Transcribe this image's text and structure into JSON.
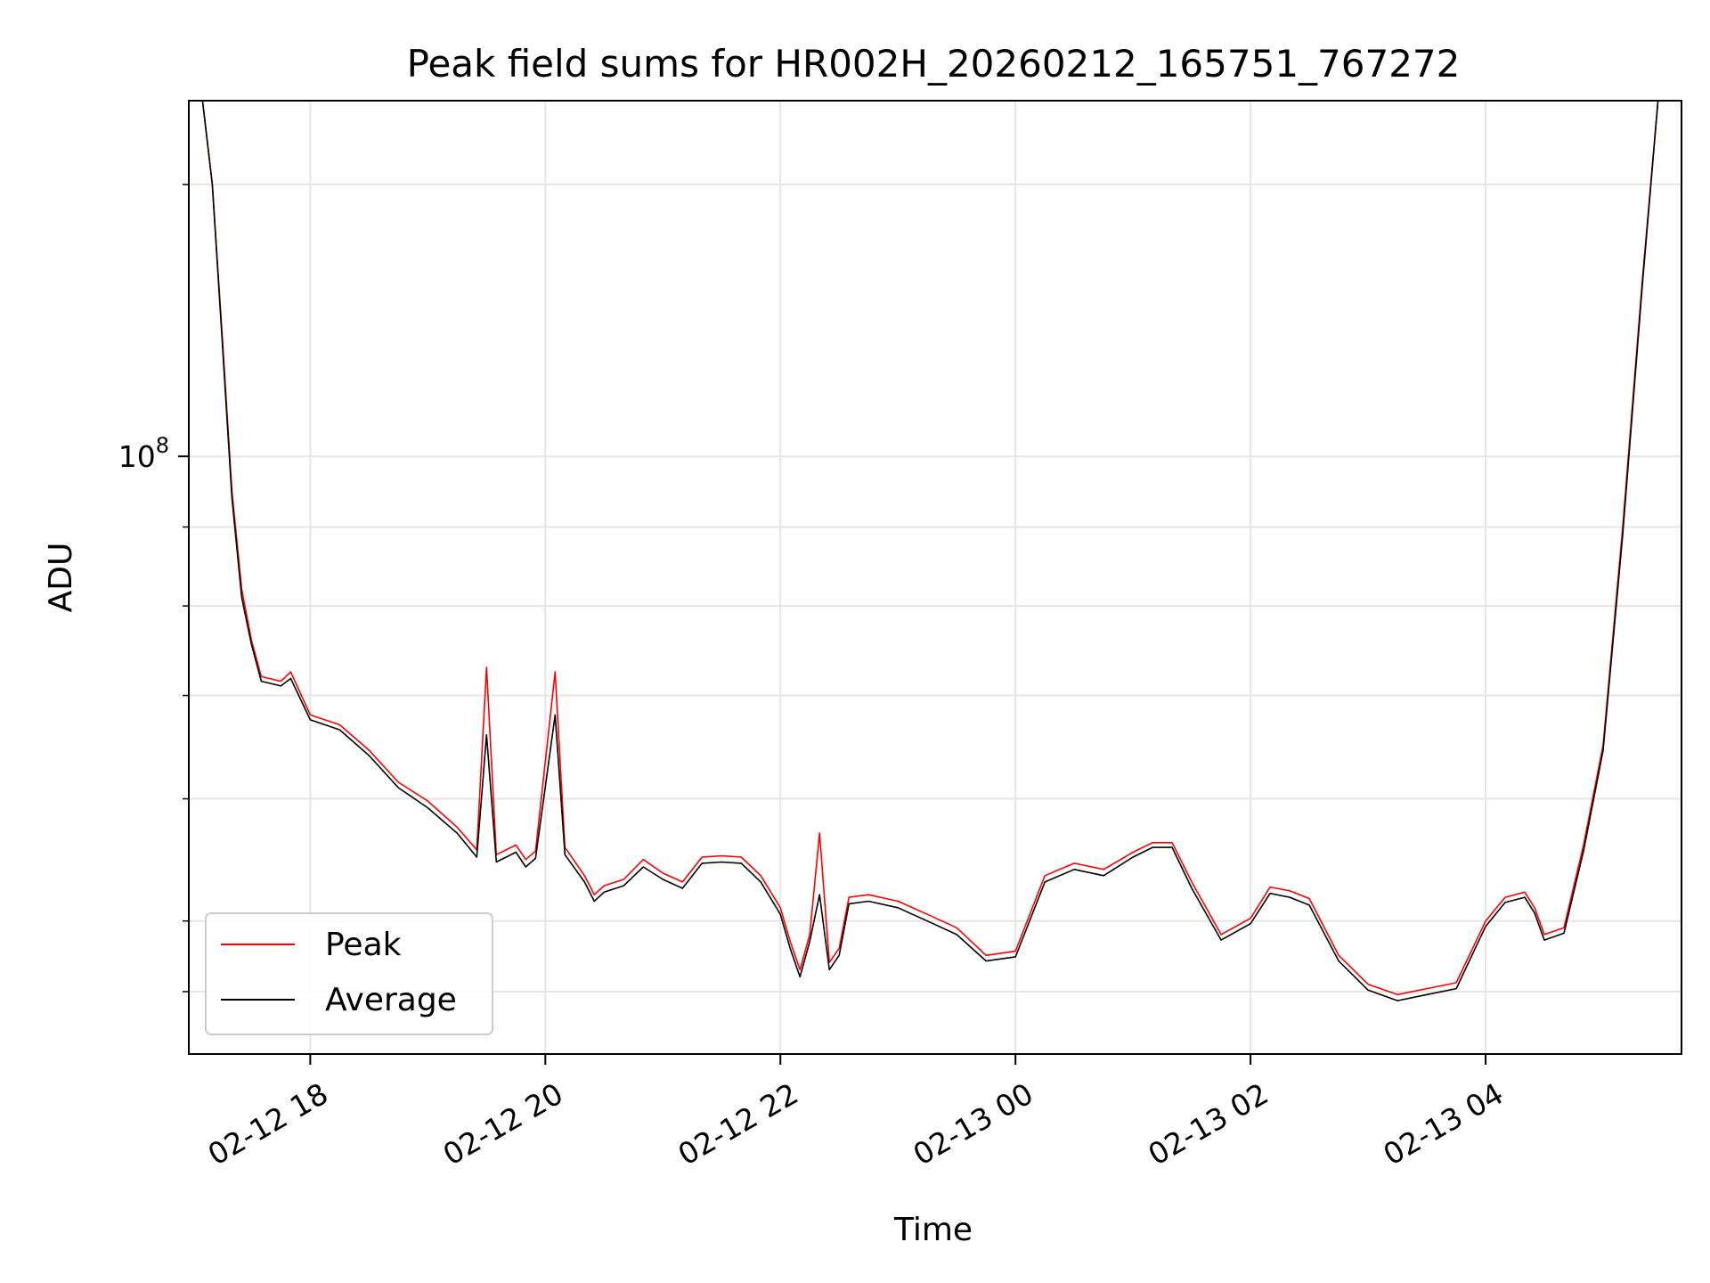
{
  "chart_data": {
    "type": "line",
    "title": "Peak field sums for HR002H_20260212_165751_767272",
    "xlabel": "Time",
    "ylabel": "ADU",
    "y_scale": "log",
    "ylim": [
      41000000,
      170000000
    ],
    "xlim": [
      "2026-02-12 16:58",
      "2026-02-13 05:40"
    ],
    "grid": true,
    "legend": {
      "position": "bottom-left"
    },
    "x_ticks": [
      {
        "t": "2026-02-12 18:00",
        "label": "02-12 18"
      },
      {
        "t": "2026-02-12 20:00",
        "label": "02-12 20"
      },
      {
        "t": "2026-02-12 22:00",
        "label": "02-12 22"
      },
      {
        "t": "2026-02-13 00:00",
        "label": "02-13 00"
      },
      {
        "t": "2026-02-13 02:00",
        "label": "02-13 02"
      },
      {
        "t": "2026-02-13 04:00",
        "label": "02-13 04"
      }
    ],
    "y_major_ticks": [
      {
        "value": 100000000,
        "base": "10",
        "exp": "8"
      }
    ],
    "y_minor_ticks": [
      45000000,
      50000000,
      60000000,
      70000000,
      80000000,
      90000000,
      150000000
    ],
    "series": [
      {
        "name": "Peak",
        "color": "#ff0000",
        "points": [
          [
            "2026-02-12 17:05",
            170000000
          ],
          [
            "2026-02-12 17:10",
            150000000
          ],
          [
            "2026-02-12 17:15",
            120000000
          ],
          [
            "2026-02-12 17:20",
            95000000
          ],
          [
            "2026-02-12 17:25",
            82000000
          ],
          [
            "2026-02-12 17:30",
            76000000
          ],
          [
            "2026-02-12 17:35",
            72000000
          ],
          [
            "2026-02-12 17:45",
            71500000
          ],
          [
            "2026-02-12 17:50",
            72500000
          ],
          [
            "2026-02-12 18:00",
            68000000
          ],
          [
            "2026-02-12 18:15",
            67000000
          ],
          [
            "2026-02-12 18:30",
            64500000
          ],
          [
            "2026-02-12 18:45",
            61500000
          ],
          [
            "2026-02-12 19:00",
            59800000
          ],
          [
            "2026-02-12 19:15",
            57500000
          ],
          [
            "2026-02-12 19:25",
            55600000
          ],
          [
            "2026-02-12 19:30",
            73000000
          ],
          [
            "2026-02-12 19:35",
            55200000
          ],
          [
            "2026-02-12 19:45",
            56000000
          ],
          [
            "2026-02-12 19:50",
            54800000
          ],
          [
            "2026-02-12 19:55",
            55500000
          ],
          [
            "2026-02-12 20:05",
            72500000
          ],
          [
            "2026-02-12 20:10",
            55800000
          ],
          [
            "2026-02-12 20:20",
            53500000
          ],
          [
            "2026-02-12 20:25",
            52000000
          ],
          [
            "2026-02-12 20:30",
            52700000
          ],
          [
            "2026-02-12 20:40",
            53200000
          ],
          [
            "2026-02-12 20:50",
            54800000
          ],
          [
            "2026-02-12 21:00",
            53700000
          ],
          [
            "2026-02-12 21:10",
            53000000
          ],
          [
            "2026-02-12 21:20",
            55000000
          ],
          [
            "2026-02-12 21:30",
            55100000
          ],
          [
            "2026-02-12 21:40",
            55000000
          ],
          [
            "2026-02-12 21:50",
            53500000
          ],
          [
            "2026-02-12 22:00",
            51000000
          ],
          [
            "2026-02-12 22:05",
            48500000
          ],
          [
            "2026-02-12 22:10",
            46500000
          ],
          [
            "2026-02-12 22:15",
            49000000
          ],
          [
            "2026-02-12 22:20",
            57000000
          ],
          [
            "2026-02-12 22:25",
            47000000
          ],
          [
            "2026-02-12 22:30",
            48000000
          ],
          [
            "2026-02-12 22:35",
            51800000
          ],
          [
            "2026-02-12 22:45",
            52000000
          ],
          [
            "2026-02-12 23:00",
            51500000
          ],
          [
            "2026-02-12 23:15",
            50500000
          ],
          [
            "2026-02-12 23:30",
            49500000
          ],
          [
            "2026-02-12 23:45",
            47500000
          ],
          [
            "2026-02-13 00:00",
            47800000
          ],
          [
            "2026-02-13 00:15",
            53500000
          ],
          [
            "2026-02-13 00:30",
            54500000
          ],
          [
            "2026-02-13 00:45",
            54000000
          ],
          [
            "2026-02-13 01:00",
            55400000
          ],
          [
            "2026-02-13 01:10",
            56200000
          ],
          [
            "2026-02-13 01:20",
            56200000
          ],
          [
            "2026-02-13 01:30",
            53000000
          ],
          [
            "2026-02-13 01:45",
            49000000
          ],
          [
            "2026-02-13 02:00",
            50200000
          ],
          [
            "2026-02-13 02:10",
            52600000
          ],
          [
            "2026-02-13 02:20",
            52300000
          ],
          [
            "2026-02-13 02:30",
            51700000
          ],
          [
            "2026-02-13 02:45",
            47500000
          ],
          [
            "2026-02-13 03:00",
            45500000
          ],
          [
            "2026-02-13 03:15",
            44800000
          ],
          [
            "2026-02-13 03:30",
            45200000
          ],
          [
            "2026-02-13 03:45",
            45600000
          ],
          [
            "2026-02-13 04:00",
            50000000
          ],
          [
            "2026-02-13 04:10",
            51800000
          ],
          [
            "2026-02-13 04:20",
            52200000
          ],
          [
            "2026-02-13 04:25",
            51000000
          ],
          [
            "2026-02-13 04:30",
            49000000
          ],
          [
            "2026-02-13 04:40",
            49500000
          ],
          [
            "2026-02-13 04:50",
            56000000
          ],
          [
            "2026-02-13 05:00",
            65000000
          ],
          [
            "2026-02-13 05:10",
            90000000
          ],
          [
            "2026-02-13 05:20",
            130000000
          ],
          [
            "2026-02-13 05:28",
            170000000
          ]
        ]
      },
      {
        "name": "Average",
        "color": "#000000",
        "points": [
          [
            "2026-02-12 17:05",
            170000000
          ],
          [
            "2026-02-12 17:10",
            150000000
          ],
          [
            "2026-02-12 17:15",
            119000000
          ],
          [
            "2026-02-12 17:20",
            94000000
          ],
          [
            "2026-02-12 17:25",
            81000000
          ],
          [
            "2026-02-12 17:30",
            75500000
          ],
          [
            "2026-02-12 17:35",
            71500000
          ],
          [
            "2026-02-12 17:45",
            71000000
          ],
          [
            "2026-02-12 17:50",
            71800000
          ],
          [
            "2026-02-12 18:00",
            67500000
          ],
          [
            "2026-02-12 18:15",
            66500000
          ],
          [
            "2026-02-12 18:30",
            64000000
          ],
          [
            "2026-02-12 18:45",
            61000000
          ],
          [
            "2026-02-12 19:00",
            59200000
          ],
          [
            "2026-02-12 19:15",
            57000000
          ],
          [
            "2026-02-12 19:25",
            55000000
          ],
          [
            "2026-02-12 19:30",
            66000000
          ],
          [
            "2026-02-12 19:35",
            54600000
          ],
          [
            "2026-02-12 19:45",
            55400000
          ],
          [
            "2026-02-12 19:50",
            54200000
          ],
          [
            "2026-02-12 19:55",
            54900000
          ],
          [
            "2026-02-12 20:05",
            68000000
          ],
          [
            "2026-02-12 20:10",
            55200000
          ],
          [
            "2026-02-12 20:20",
            53000000
          ],
          [
            "2026-02-12 20:25",
            51500000
          ],
          [
            "2026-02-12 20:30",
            52200000
          ],
          [
            "2026-02-12 20:40",
            52700000
          ],
          [
            "2026-02-12 20:50",
            54200000
          ],
          [
            "2026-02-12 21:00",
            53200000
          ],
          [
            "2026-02-12 21:10",
            52500000
          ],
          [
            "2026-02-12 21:20",
            54500000
          ],
          [
            "2026-02-12 21:30",
            54600000
          ],
          [
            "2026-02-12 21:40",
            54500000
          ],
          [
            "2026-02-12 21:50",
            53000000
          ],
          [
            "2026-02-12 22:00",
            50500000
          ],
          [
            "2026-02-12 22:05",
            48000000
          ],
          [
            "2026-02-12 22:10",
            46000000
          ],
          [
            "2026-02-12 22:15",
            48500000
          ],
          [
            "2026-02-12 22:20",
            52000000
          ],
          [
            "2026-02-12 22:25",
            46500000
          ],
          [
            "2026-02-12 22:30",
            47500000
          ],
          [
            "2026-02-12 22:35",
            51300000
          ],
          [
            "2026-02-12 22:45",
            51500000
          ],
          [
            "2026-02-12 23:00",
            51000000
          ],
          [
            "2026-02-12 23:15",
            50000000
          ],
          [
            "2026-02-12 23:30",
            49000000
          ],
          [
            "2026-02-12 23:45",
            47100000
          ],
          [
            "2026-02-13 00:00",
            47400000
          ],
          [
            "2026-02-13 00:15",
            53000000
          ],
          [
            "2026-02-13 00:30",
            54000000
          ],
          [
            "2026-02-13 00:45",
            53500000
          ],
          [
            "2026-02-13 01:00",
            55000000
          ],
          [
            "2026-02-13 01:10",
            55800000
          ],
          [
            "2026-02-13 01:20",
            55800000
          ],
          [
            "2026-02-13 01:30",
            52500000
          ],
          [
            "2026-02-13 01:45",
            48600000
          ],
          [
            "2026-02-13 02:00",
            49800000
          ],
          [
            "2026-02-13 02:10",
            52100000
          ],
          [
            "2026-02-13 02:20",
            51800000
          ],
          [
            "2026-02-13 02:30",
            51200000
          ],
          [
            "2026-02-13 02:45",
            47100000
          ],
          [
            "2026-02-13 03:00",
            45100000
          ],
          [
            "2026-02-13 03:15",
            44400000
          ],
          [
            "2026-02-13 03:30",
            44800000
          ],
          [
            "2026-02-13 03:45",
            45200000
          ],
          [
            "2026-02-13 04:00",
            49600000
          ],
          [
            "2026-02-13 04:10",
            51400000
          ],
          [
            "2026-02-13 04:20",
            51800000
          ],
          [
            "2026-02-13 04:25",
            50600000
          ],
          [
            "2026-02-13 04:30",
            48600000
          ],
          [
            "2026-02-13 04:40",
            49100000
          ],
          [
            "2026-02-13 04:50",
            55500000
          ],
          [
            "2026-02-13 05:00",
            64500000
          ],
          [
            "2026-02-13 05:10",
            89000000
          ],
          [
            "2026-02-13 05:20",
            129000000
          ],
          [
            "2026-02-13 05:28",
            170000000
          ]
        ]
      }
    ]
  }
}
